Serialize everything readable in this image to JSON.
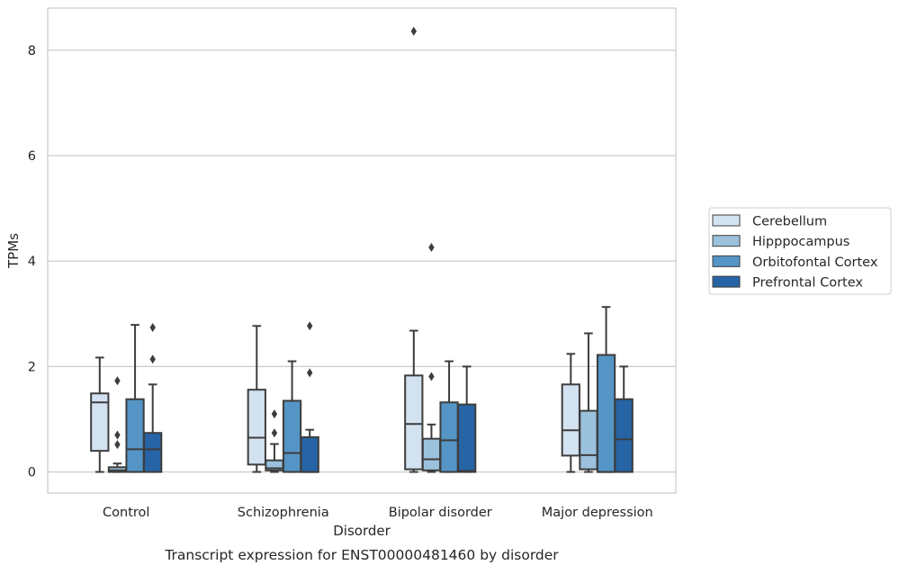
{
  "chart_data": {
    "type": "boxplot",
    "title": "Transcript expression for ENST00000481460 by disorder",
    "xlabel": "Disorder",
    "ylabel": "TPMs",
    "ylim": [
      -0.4,
      8.8
    ],
    "yticks": [
      0,
      2,
      4,
      6,
      8
    ],
    "grid": "horizontal",
    "legend_position": "right",
    "categories": [
      "Control",
      "Schizophrenia",
      "Bipolar disorder",
      "Major depression"
    ],
    "series": [
      {
        "name": "Cerebellum",
        "color": "#d3e2f1",
        "boxes": [
          {
            "whisker_low": 0,
            "q1": 0.4,
            "median": 1.32,
            "q3": 1.49,
            "whisker_high": 2.17,
            "outliers": []
          },
          {
            "whisker_low": 0,
            "q1": 0.14,
            "median": 0.65,
            "q3": 1.56,
            "whisker_high": 2.77,
            "outliers": []
          },
          {
            "whisker_low": 0,
            "q1": 0.05,
            "median": 0.91,
            "q3": 1.83,
            "whisker_high": 2.68,
            "outliers": [
              8.36
            ]
          },
          {
            "whisker_low": 0,
            "q1": 0.31,
            "median": 0.79,
            "q3": 1.66,
            "whisker_high": 2.24,
            "outliers": []
          }
        ]
      },
      {
        "name": "Hipppocampus",
        "color": "#9bc1dc",
        "boxes": [
          {
            "whisker_low": 0,
            "q1": 0.0,
            "median": 0.03,
            "q3": 0.09,
            "whisker_high": 0.16,
            "outliers": [
              0.52,
              0.7,
              1.73
            ]
          },
          {
            "whisker_low": 0,
            "q1": 0.03,
            "median": 0.07,
            "q3": 0.22,
            "whisker_high": 0.53,
            "outliers": [
              0.74,
              1.1
            ]
          },
          {
            "whisker_low": 0,
            "q1": 0.03,
            "median": 0.24,
            "q3": 0.63,
            "whisker_high": 0.9,
            "outliers": [
              1.81,
              4.26
            ]
          },
          {
            "whisker_low": 0,
            "q1": 0.05,
            "median": 0.32,
            "q3": 1.16,
            "whisker_high": 2.63,
            "outliers": []
          }
        ]
      },
      {
        "name": "Orbitofontal Cortex",
        "color": "#5495c6",
        "boxes": [
          {
            "whisker_low": 0,
            "q1": 0.0,
            "median": 0.43,
            "q3": 1.38,
            "whisker_high": 2.79,
            "outliers": []
          },
          {
            "whisker_low": 0,
            "q1": 0.0,
            "median": 0.36,
            "q3": 1.35,
            "whisker_high": 2.1,
            "outliers": []
          },
          {
            "whisker_low": 0,
            "q1": 0.0,
            "median": 0.6,
            "q3": 1.32,
            "whisker_high": 2.1,
            "outliers": []
          },
          {
            "whisker_low": 0,
            "q1": 0.0,
            "median": 0.0,
            "q3": 2.22,
            "whisker_high": 3.13,
            "outliers": []
          }
        ]
      },
      {
        "name": "Prefrontal Cortex",
        "color": "#2664a6",
        "boxes": [
          {
            "whisker_low": 0,
            "q1": 0.0,
            "median": 0.43,
            "q3": 0.74,
            "whisker_high": 1.66,
            "outliers": [
              2.14,
              2.74
            ]
          },
          {
            "whisker_low": 0,
            "q1": 0.0,
            "median": 0.0,
            "q3": 0.66,
            "whisker_high": 0.8,
            "outliers": [
              1.88,
              2.77
            ]
          },
          {
            "whisker_low": 0,
            "q1": 0.0,
            "median": 0.02,
            "q3": 1.28,
            "whisker_high": 2.0,
            "outliers": []
          },
          {
            "whisker_low": 0,
            "q1": 0.0,
            "median": 0.62,
            "q3": 1.38,
            "whisker_high": 2.0,
            "outliers": []
          }
        ]
      }
    ]
  }
}
